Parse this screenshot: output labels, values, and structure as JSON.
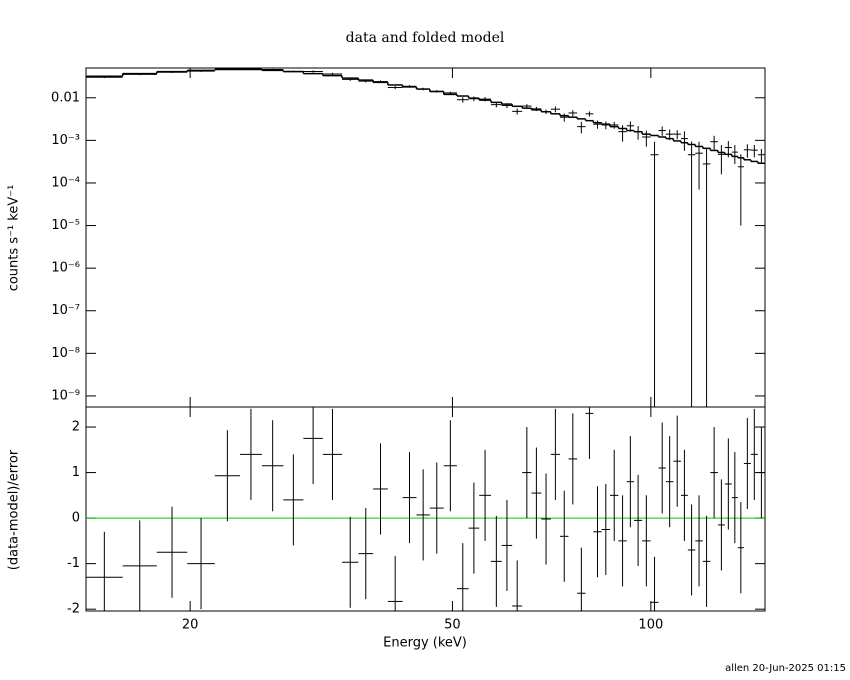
{
  "footer": "allen 20-Jun-2025 01:15",
  "chart_data": [
    {
      "type": "spectrum",
      "title": "data and folded model",
      "ylabel": "counts s⁻¹ keV⁻¹",
      "yscale": "log",
      "ylim": [
        5.5e-10,
        0.05
      ],
      "yticks": [
        0.01,
        {
          "value": 0.001,
          "label": "10⁻³"
        },
        {
          "value": 0.0001,
          "label": "10⁻⁴"
        },
        {
          "value": 1e-05,
          "label": "10⁻⁵"
        },
        {
          "value": 1e-06,
          "label": "10⁻⁶"
        },
        {
          "value": 1e-07,
          "label": "10⁻⁷"
        },
        {
          "value": 1e-08,
          "label": "10⁻⁸"
        },
        {
          "value": 1e-09,
          "label": "10⁻⁹"
        }
      ],
      "bins": [
        13.9,
        15.8,
        17.8,
        19.8,
        21.8,
        23.8,
        25.7,
        27.7,
        29.7,
        31.8,
        34.0,
        36.0,
        37.9,
        39.9,
        42.0,
        44.1,
        46.2,
        48.5,
        50.8,
        52.9,
        54.9,
        57.2,
        59.4,
        61.6,
        63.8,
        65.9,
        68.2,
        70.5,
        72.8,
        75.0,
        77.3,
        79.6,
        81.8,
        84.2,
        86.7,
        89.3,
        91.9,
        94.3,
        97.0,
        99.9,
        102.7,
        105.4,
        108.2,
        111.1,
        113.8,
        116.8,
        119.9,
        123.1,
        126.4,
        129.5,
        132.7,
        135.5,
        138.4,
        141.8,
        145.3,
        149
      ],
      "data": {
        "color": "#000000",
        "values": [
          0.0303,
          0.0354,
          0.0398,
          0.0422,
          0.0477,
          0.0486,
          0.046,
          0.0417,
          0.0415,
          0.0362,
          0.027,
          0.0246,
          0.024,
          0.0174,
          0.0186,
          0.0161,
          0.0142,
          0.013,
          0.009,
          0.0095,
          0.0093,
          0.0069,
          0.0066,
          0.0048,
          0.0064,
          0.0055,
          0.0047,
          0.0054,
          0.0035,
          0.0044,
          0.0021,
          0.0042,
          0.0024,
          0.0023,
          0.0023,
          0.0016,
          0.0022,
          0.0016,
          0.0012,
          0.00046,
          0.0017,
          0.0014,
          0.0014,
          0.0011,
          0.00046,
          0.0005,
          0.00028,
          0.00093,
          0.00047,
          0.00068,
          0.00053,
          0.00024,
          0.0006,
          0.00059,
          0.00046
        ],
        "errors": [
          0.0013,
          0.0015,
          0.0016,
          0.0018,
          0.0018,
          0.0018,
          0.0018,
          0.0016,
          0.0026,
          0.0023,
          0.002,
          0.0018,
          0.0016,
          0.0014,
          0.0013,
          0.0011,
          0.001,
          0.00084,
          0.0013,
          0.0012,
          0.0011,
          0.00094,
          0.00085,
          0.00076,
          0.00068,
          0.00062,
          0.00056,
          0.00084,
          0.00076,
          0.0007,
          0.00064,
          0.00058,
          0.00052,
          0.00048,
          0.00042,
          0.00067,
          0.0006,
          0.00056,
          0.00049,
          0.00046,
          0.00042,
          0.00039,
          0.00034,
          0.00053,
          0.00048,
          0.00043,
          0.00039,
          0.00035,
          0.00031,
          0.00028,
          0.00025,
          0.00023,
          0.00021,
          0.00019,
          0.00017
        ]
      },
      "model": {
        "color": "#000000",
        "values": [
          0.032,
          0.037,
          0.041,
          0.044,
          0.046,
          0.046,
          0.044,
          0.041,
          0.037,
          0.033,
          0.029,
          0.026,
          0.023,
          0.02,
          0.018,
          0.016,
          0.014,
          0.012,
          0.011,
          0.0098,
          0.0088,
          0.0078,
          0.0071,
          0.0063,
          0.0057,
          0.0052,
          0.0047,
          0.0042,
          0.0038,
          0.0035,
          0.0032,
          0.0029,
          0.0026,
          0.0024,
          0.0021,
          0.0019,
          0.0017,
          0.0016,
          0.0014,
          0.0013,
          0.0012,
          0.0011,
          0.00097,
          0.00088,
          0.0008,
          0.00072,
          0.00065,
          0.00058,
          0.00052,
          0.00047,
          0.00042,
          0.00039,
          0.00035,
          0.00032,
          0.00029
        ]
      }
    },
    {
      "type": "residual",
      "xlabel": "Energy (keV)",
      "ylabel": "(data-model)/error",
      "xscale": "log",
      "xlim": [
        13.9,
        149
      ],
      "xticks": [
        20,
        50,
        100
      ],
      "ylim": [
        -2.04,
        2.44
      ],
      "yticks": [
        -2,
        -1,
        0,
        1,
        2
      ],
      "zero_color": "#00cc00",
      "data": {
        "color": "#000000",
        "values": [
          -1.3,
          -1.05,
          -0.75,
          -1.0,
          0.93,
          1.4,
          1.15,
          0.4,
          1.75,
          1.4,
          -0.97,
          -0.78,
          0.64,
          -1.83,
          0.45,
          0.07,
          0.22,
          1.15,
          -1.55,
          -0.22,
          0.5,
          -0.95,
          -0.6,
          -1.93,
          1.0,
          0.55,
          -0.02,
          1.4,
          -0.4,
          1.3,
          -1.65,
          2.3,
          -0.3,
          -0.25,
          0.5,
          -0.5,
          0.8,
          -0.05,
          -0.5,
          -1.85,
          1.1,
          0.8,
          1.25,
          0.5,
          -0.7,
          -0.5,
          -0.95,
          1.0,
          -0.15,
          0.75,
          0.45,
          -0.65,
          1.2,
          1.4,
          1.0
        ],
        "errors": [
          1,
          1,
          1,
          1,
          1,
          1,
          1,
          1,
          1,
          1,
          1,
          1,
          1,
          1,
          1,
          1,
          1,
          1,
          1,
          1,
          1,
          1,
          1,
          1,
          1,
          1,
          1,
          1,
          1,
          1,
          1,
          1,
          1,
          1,
          1,
          1,
          1,
          1,
          1,
          1,
          1,
          1,
          1,
          1,
          1,
          1,
          1,
          1,
          1,
          1,
          1,
          1,
          1,
          1,
          1
        ]
      }
    }
  ]
}
